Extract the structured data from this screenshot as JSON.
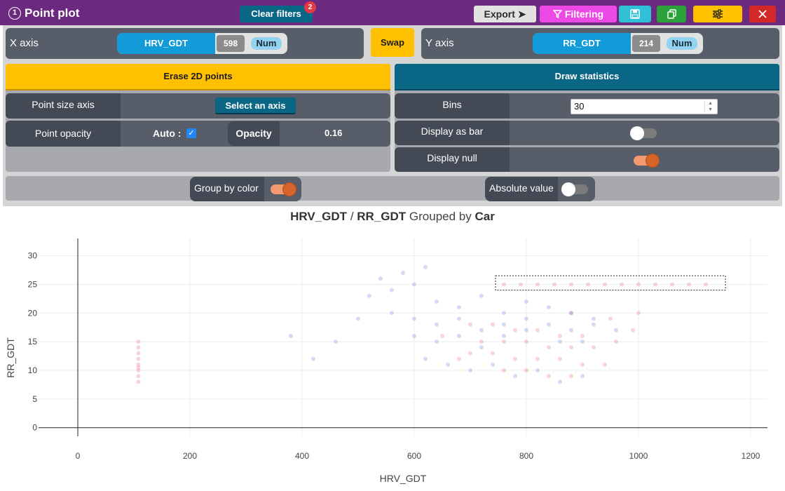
{
  "window": {
    "number": "1",
    "title": "Point plot"
  },
  "toolbar": {
    "clear_filters_label": "Clear filters",
    "filter_count": "2",
    "export_label": "Export",
    "filtering_label": "Filtering"
  },
  "axes": {
    "x_axis_label": "X axis",
    "y_axis_label": "Y axis",
    "swap_label": "Swap",
    "x": {
      "name": "HRV_GDT",
      "count": "598",
      "type": "Num"
    },
    "y": {
      "name": "RR_GDT",
      "count": "214",
      "type": "Num"
    }
  },
  "left_panel": {
    "erase_label": "Erase 2D points",
    "point_size_axis_label": "Point size axis",
    "select_axis_label": "Select an axis",
    "point_opacity_label": "Point opacity",
    "auto_label": "Auto :",
    "auto_checked": true,
    "opacity_label": "Opacity",
    "opacity_value": "0.16"
  },
  "right_panel": {
    "draw_statistics_label": "Draw statistics",
    "bins_label": "Bins",
    "bins_value": "30",
    "display_as_bar_label": "Display as bar",
    "display_as_bar_on": false,
    "display_null_label": "Display null",
    "display_null_on": true
  },
  "options": {
    "group_by_color_label": "Group by color",
    "group_by_color_on": true,
    "absolute_value_label": "Absolute value",
    "absolute_value_on": false
  },
  "chart_title": {
    "x_name": "HRV_GDT",
    "separator": "/",
    "y_name": "RR_GDT",
    "grouped_by_text": "Grouped by",
    "group_name": "Car"
  },
  "colors": {
    "titlebar": "#6b2a7f",
    "accent_yellow": "#ffc000",
    "accent_teal": "#0a6685",
    "series_red": "#e8667a",
    "series_blue": "#6e78e0"
  },
  "chart_data": {
    "type": "scatter",
    "xlabel": "HRV_GDT",
    "ylabel": "RR_GDT",
    "xlim": [
      -70,
      1230
    ],
    "ylim": [
      -1.5,
      33
    ],
    "x_ticks": [
      0,
      200,
      400,
      600,
      800,
      1000,
      1200
    ],
    "y_ticks": [
      0,
      5,
      10,
      15,
      20,
      25,
      30
    ],
    "grid": true,
    "selection_box": {
      "x": [
        745,
        1155
      ],
      "y": [
        24,
        26.5
      ]
    },
    "series": [
      {
        "color": "#e8667a",
        "points": [
          [
            108,
            8
          ],
          [
            108,
            9
          ],
          [
            108,
            10
          ],
          [
            108,
            10.5
          ],
          [
            108,
            11
          ],
          [
            108,
            12
          ],
          [
            108,
            13
          ],
          [
            108,
            14
          ],
          [
            108,
            15
          ],
          [
            760,
            25
          ],
          [
            790,
            25
          ],
          [
            820,
            25
          ],
          [
            850,
            25
          ],
          [
            880,
            25
          ],
          [
            910,
            25
          ],
          [
            940,
            25
          ],
          [
            970,
            25
          ],
          [
            1000,
            25
          ],
          [
            1030,
            25
          ],
          [
            1060,
            25
          ],
          [
            1090,
            25
          ],
          [
            1120,
            25
          ],
          [
            700,
            18
          ],
          [
            740,
            18
          ],
          [
            780,
            17
          ],
          [
            820,
            17
          ],
          [
            860,
            16
          ],
          [
            900,
            16
          ],
          [
            720,
            15
          ],
          [
            760,
            15
          ],
          [
            800,
            15
          ],
          [
            840,
            14
          ],
          [
            880,
            14
          ],
          [
            920,
            14
          ],
          [
            700,
            13
          ],
          [
            740,
            13
          ],
          [
            780,
            12
          ],
          [
            820,
            12
          ],
          [
            860,
            12
          ],
          [
            900,
            11
          ],
          [
            940,
            11
          ],
          [
            760,
            10
          ],
          [
            800,
            10
          ],
          [
            840,
            9
          ],
          [
            880,
            9
          ],
          [
            650,
            16
          ],
          [
            680,
            12
          ],
          [
            960,
            15
          ],
          [
            990,
            17
          ],
          [
            1000,
            20
          ],
          [
            950,
            19
          ],
          [
            880,
            20
          ]
        ]
      },
      {
        "color": "#6e78e0",
        "points": [
          [
            520,
            23
          ],
          [
            560,
            24
          ],
          [
            600,
            25
          ],
          [
            640,
            22
          ],
          [
            680,
            21
          ],
          [
            720,
            23
          ],
          [
            760,
            20
          ],
          [
            800,
            22
          ],
          [
            840,
            21
          ],
          [
            880,
            20
          ],
          [
            920,
            19
          ],
          [
            560,
            20
          ],
          [
            600,
            19
          ],
          [
            640,
            18
          ],
          [
            680,
            19
          ],
          [
            720,
            17
          ],
          [
            760,
            18
          ],
          [
            800,
            19
          ],
          [
            840,
            18
          ],
          [
            880,
            17
          ],
          [
            920,
            18
          ],
          [
            960,
            17
          ],
          [
            600,
            16
          ],
          [
            640,
            15
          ],
          [
            680,
            16
          ],
          [
            720,
            14
          ],
          [
            760,
            16
          ],
          [
            800,
            17
          ],
          [
            860,
            15
          ],
          [
            900,
            15
          ],
          [
            620,
            12
          ],
          [
            660,
            11
          ],
          [
            700,
            10
          ],
          [
            740,
            11
          ],
          [
            780,
            9
          ],
          [
            820,
            10
          ],
          [
            860,
            8
          ],
          [
            900,
            9
          ],
          [
            540,
            26
          ],
          [
            580,
            27
          ],
          [
            620,
            28
          ],
          [
            500,
            19
          ],
          [
            460,
            15
          ],
          [
            420,
            12
          ],
          [
            380,
            16
          ]
        ]
      }
    ]
  }
}
